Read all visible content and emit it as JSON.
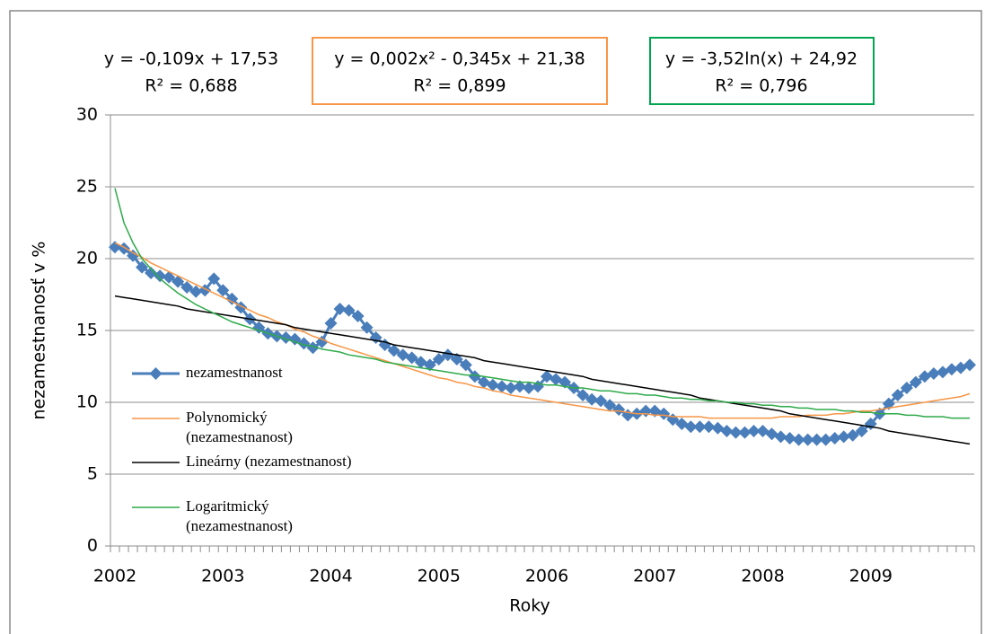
{
  "chart_data": {
    "type": "line",
    "y_label": "nezamestnanosť v %",
    "x_label": "Roky",
    "categories": [
      "2002",
      null,
      null,
      null,
      null,
      null,
      null,
      null,
      null,
      null,
      null,
      null,
      "2003",
      null,
      null,
      null,
      null,
      null,
      null,
      null,
      null,
      null,
      null,
      null,
      "2004",
      null,
      null,
      null,
      null,
      null,
      null,
      null,
      null,
      null,
      null,
      null,
      "2005",
      null,
      null,
      null,
      null,
      null,
      null,
      null,
      null,
      null,
      null,
      null,
      "2006",
      null,
      null,
      null,
      null,
      null,
      null,
      null,
      null,
      null,
      null,
      null,
      "2007",
      null,
      null,
      null,
      null,
      null,
      null,
      null,
      null,
      null,
      null,
      null,
      "2008",
      null,
      null,
      null,
      null,
      null,
      null,
      null,
      null,
      null,
      null,
      null,
      "2009",
      null,
      null,
      null,
      null,
      null,
      null,
      null,
      null,
      null,
      null,
      null
    ],
    "ylim": [
      0,
      30
    ],
    "yticks": [
      0,
      5,
      10,
      15,
      20,
      25,
      30
    ],
    "grid": true,
    "legend": "left",
    "series": [
      {
        "name": "nezamestnanost",
        "color": "#4a7ebb",
        "marker": "diamond",
        "values": [
          20.8,
          20.7,
          20.2,
          19.4,
          19.0,
          18.8,
          18.7,
          18.4,
          18.0,
          17.7,
          17.8,
          18.6,
          17.8,
          17.2,
          16.6,
          15.8,
          15.2,
          14.8,
          14.6,
          14.5,
          14.4,
          14.1,
          13.8,
          14.2,
          15.5,
          16.5,
          16.4,
          16.0,
          15.2,
          14.5,
          14.0,
          13.6,
          13.3,
          13.1,
          12.8,
          12.6,
          13.0,
          13.3,
          13.0,
          12.6,
          11.8,
          11.4,
          11.2,
          11.1,
          11.0,
          11.1,
          11.0,
          11.1,
          11.8,
          11.6,
          11.4,
          11.0,
          10.5,
          10.2,
          10.1,
          9.8,
          9.5,
          9.1,
          9.2,
          9.4,
          9.4,
          9.2,
          8.8,
          8.5,
          8.3,
          8.3,
          8.3,
          8.2,
          8.0,
          7.9,
          7.9,
          8.0,
          8.0,
          7.8,
          7.6,
          7.5,
          7.4,
          7.4,
          7.4,
          7.4,
          7.5,
          7.6,
          7.7,
          8.0,
          8.5,
          9.2,
          9.9,
          10.5,
          11.0,
          11.4,
          11.8,
          12.0,
          12.1,
          12.3,
          12.4,
          12.6
        ]
      },
      {
        "name": "Polynomický (nezamestnanost)",
        "color": "#f79646",
        "values": [
          21.1,
          20.8,
          20.4,
          20.1,
          19.7,
          19.4,
          19.1,
          18.8,
          18.5,
          18.2,
          17.9,
          17.6,
          17.3,
          17.0,
          16.7,
          16.4,
          16.1,
          15.9,
          15.6,
          15.4,
          15.1,
          14.9,
          14.6,
          14.4,
          14.1,
          13.9,
          13.7,
          13.5,
          13.3,
          13.1,
          12.9,
          12.7,
          12.5,
          12.3,
          12.1,
          11.9,
          11.7,
          11.6,
          11.4,
          11.3,
          11.1,
          11.0,
          10.8,
          10.7,
          10.5,
          10.4,
          10.3,
          10.2,
          10.1,
          10.0,
          9.9,
          9.8,
          9.7,
          9.6,
          9.5,
          9.4,
          9.4,
          9.3,
          9.2,
          9.2,
          9.1,
          9.1,
          9.0,
          9.0,
          9.0,
          9.0,
          8.9,
          8.9,
          8.9,
          8.9,
          8.9,
          8.9,
          8.9,
          8.9,
          9.0,
          9.0,
          9.0,
          9.1,
          9.1,
          9.1,
          9.2,
          9.2,
          9.3,
          9.4,
          9.4,
          9.5,
          9.6,
          9.7,
          9.8,
          9.9,
          10.0,
          10.1,
          10.2,
          10.3,
          10.4,
          10.6
        ]
      },
      {
        "name": "Lineárny (nezamestnanost)",
        "color": "#000000",
        "values": [
          17.4,
          17.3,
          17.2,
          17.1,
          17.0,
          16.9,
          16.8,
          16.7,
          16.5,
          16.4,
          16.3,
          16.2,
          16.1,
          16.0,
          15.9,
          15.8,
          15.7,
          15.6,
          15.5,
          15.4,
          15.2,
          15.1,
          15.0,
          14.9,
          14.8,
          14.7,
          14.6,
          14.5,
          14.4,
          14.3,
          14.2,
          14.0,
          13.9,
          13.8,
          13.7,
          13.6,
          13.5,
          13.4,
          13.3,
          13.2,
          13.1,
          12.9,
          12.8,
          12.7,
          12.6,
          12.5,
          12.4,
          12.3,
          12.2,
          12.1,
          12.0,
          11.9,
          11.8,
          11.6,
          11.5,
          11.4,
          11.3,
          11.2,
          11.1,
          11.0,
          10.9,
          10.8,
          10.7,
          10.6,
          10.5,
          10.3,
          10.2,
          10.1,
          10.0,
          9.9,
          9.8,
          9.7,
          9.6,
          9.5,
          9.4,
          9.2,
          9.1,
          9.0,
          8.9,
          8.8,
          8.7,
          8.6,
          8.5,
          8.4,
          8.3,
          8.2,
          8.0,
          7.9,
          7.8,
          7.7,
          7.6,
          7.5,
          7.4,
          7.3,
          7.2,
          7.1
        ]
      },
      {
        "name": "Logaritmický (nezamestnanost)",
        "color": "#2eaa4a",
        "values": [
          24.9,
          22.5,
          21.1,
          20.0,
          19.3,
          18.6,
          18.1,
          17.6,
          17.2,
          16.8,
          16.5,
          16.2,
          15.9,
          15.6,
          15.4,
          15.2,
          15.0,
          14.8,
          14.6,
          14.4,
          14.2,
          14.0,
          13.9,
          13.7,
          13.6,
          13.5,
          13.3,
          13.2,
          13.1,
          13.0,
          12.8,
          12.7,
          12.6,
          12.5,
          12.4,
          12.3,
          12.2,
          12.1,
          12.0,
          11.9,
          11.9,
          11.8,
          11.7,
          11.6,
          11.5,
          11.4,
          11.4,
          11.3,
          11.2,
          11.2,
          11.1,
          11.0,
          11.0,
          10.9,
          10.8,
          10.8,
          10.7,
          10.6,
          10.6,
          10.5,
          10.5,
          10.4,
          10.3,
          10.3,
          10.2,
          10.2,
          10.1,
          10.1,
          10.0,
          10.0,
          9.9,
          9.9,
          9.8,
          9.8,
          9.7,
          9.7,
          9.6,
          9.6,
          9.5,
          9.5,
          9.5,
          9.4,
          9.4,
          9.3,
          9.3,
          9.2,
          9.2,
          9.2,
          9.1,
          9.1,
          9.0,
          9.0,
          9.0,
          8.9,
          8.9,
          8.9
        ]
      }
    ],
    "annotations": [
      {
        "lines": [
          "y = -0,109x + 17,53",
          "R² = 0,688"
        ],
        "border": null
      },
      {
        "lines": [
          "y = 0,002x² - 0,345x + 21,38",
          "R² = 0,899"
        ],
        "border": "#f79646"
      },
      {
        "lines": [
          "y = -3,52ln(x) + 24,92",
          "R² = 0,796"
        ],
        "border": "#00a651"
      }
    ]
  }
}
